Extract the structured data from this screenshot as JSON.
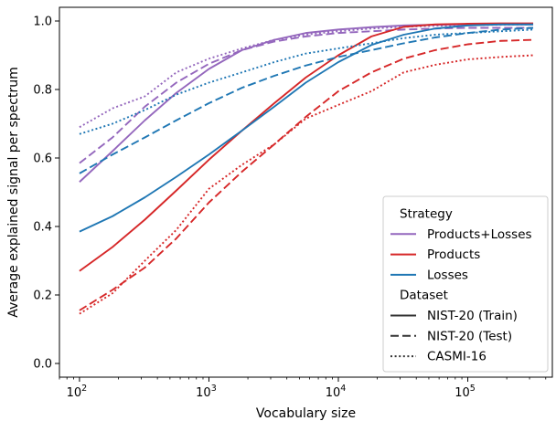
{
  "chart_data": {
    "type": "line",
    "title": "",
    "xlabel": "Vocabulary size",
    "ylabel": "Average explained signal per spectrum",
    "xscale": "log",
    "xlim": [
      70,
      450000
    ],
    "ylim": [
      -0.04,
      1.04
    ],
    "x_ticks": [
      {
        "value": 100,
        "label": "10",
        "exp": "2"
      },
      {
        "value": 1000,
        "label": "10",
        "exp": "3"
      },
      {
        "value": 10000,
        "label": "10",
        "exp": "4"
      },
      {
        "value": 100000,
        "label": "10",
        "exp": "5"
      }
    ],
    "y_ticks": [
      0.0,
      0.2,
      0.4,
      0.6,
      0.8,
      1.0
    ],
    "y_tick_labels": [
      "0.0",
      "0.2",
      "0.4",
      "0.6",
      "0.8",
      "1.0"
    ],
    "grid": false,
    "legend_position": "lower right",
    "legend": {
      "strategy_title": "Strategy",
      "strategy_items": [
        {
          "label": "Products+Losses",
          "color": "#9467bd"
        },
        {
          "label": "Products",
          "color": "#d62728"
        },
        {
          "label": "Losses",
          "color": "#1f77b4"
        }
      ],
      "dataset_title": "Dataset",
      "dataset_items": [
        {
          "label": "NIST-20 (Train)",
          "style": "solid"
        },
        {
          "label": "NIST-20 (Test)",
          "style": "dashed"
        },
        {
          "label": "CASMI-16",
          "style": "dotted"
        }
      ]
    },
    "series": [
      {
        "strategy": "Products+Losses",
        "dataset": "NIST-20 (Train)",
        "color": "#9467bd",
        "style": "solid",
        "x": [
          100,
          180,
          320,
          560,
          1000,
          1800,
          3200,
          5600,
          10000,
          18000,
          32000,
          56000,
          100000,
          180000,
          320000
        ],
        "y": [
          0.53,
          0.62,
          0.71,
          0.79,
          0.86,
          0.915,
          0.945,
          0.965,
          0.975,
          0.982,
          0.987,
          0.989,
          0.99,
          0.99,
          0.99
        ]
      },
      {
        "strategy": "Products+Losses",
        "dataset": "NIST-20 (Test)",
        "color": "#9467bd",
        "style": "dashed",
        "x": [
          100,
          180,
          320,
          560,
          1000,
          1800,
          3200,
          5600,
          10000,
          18000,
          32000,
          56000,
          100000,
          180000,
          320000
        ],
        "y": [
          0.585,
          0.66,
          0.75,
          0.82,
          0.875,
          0.915,
          0.94,
          0.955,
          0.965,
          0.97,
          0.975,
          0.978,
          0.98,
          0.98,
          0.98
        ]
      },
      {
        "strategy": "Products+Losses",
        "dataset": "CASMI-16",
        "color": "#9467bd",
        "style": "dotted",
        "x": [
          100,
          180,
          320,
          560,
          1000,
          1800,
          3200,
          5600,
          10000,
          18000,
          32000,
          56000,
          100000,
          180000,
          320000
        ],
        "y": [
          0.69,
          0.745,
          0.78,
          0.85,
          0.89,
          0.92,
          0.945,
          0.96,
          0.97,
          0.978,
          0.983,
          0.986,
          0.988,
          0.989,
          0.99
        ]
      },
      {
        "strategy": "Products",
        "dataset": "NIST-20 (Train)",
        "color": "#d62728",
        "style": "solid",
        "x": [
          100,
          180,
          320,
          560,
          1000,
          1800,
          3200,
          5600,
          10000,
          18000,
          32000,
          56000,
          100000,
          180000,
          320000
        ],
        "y": [
          0.27,
          0.34,
          0.42,
          0.505,
          0.595,
          0.68,
          0.76,
          0.835,
          0.9,
          0.955,
          0.983,
          0.99,
          0.992,
          0.993,
          0.993
        ]
      },
      {
        "strategy": "Products",
        "dataset": "NIST-20 (Test)",
        "color": "#d62728",
        "style": "dashed",
        "x": [
          100,
          180,
          320,
          560,
          1000,
          1800,
          3200,
          5600,
          10000,
          18000,
          32000,
          56000,
          100000,
          180000,
          320000
        ],
        "y": [
          0.155,
          0.215,
          0.28,
          0.365,
          0.47,
          0.56,
          0.64,
          0.72,
          0.795,
          0.85,
          0.89,
          0.915,
          0.932,
          0.942,
          0.945
        ]
      },
      {
        "strategy": "Products",
        "dataset": "CASMI-16",
        "color": "#d62728",
        "style": "dotted",
        "x": [
          100,
          180,
          320,
          560,
          1000,
          1800,
          3200,
          5600,
          10000,
          18000,
          32000,
          56000,
          100000,
          180000,
          320000
        ],
        "y": [
          0.145,
          0.205,
          0.3,
          0.39,
          0.51,
          0.58,
          0.64,
          0.715,
          0.755,
          0.795,
          0.85,
          0.872,
          0.888,
          0.895,
          0.9
        ]
      },
      {
        "strategy": "Losses",
        "dataset": "NIST-20 (Train)",
        "color": "#1f77b4",
        "style": "solid",
        "x": [
          100,
          180,
          320,
          560,
          1000,
          1800,
          3200,
          5600,
          10000,
          18000,
          32000,
          56000,
          100000,
          180000,
          320000
        ],
        "y": [
          0.385,
          0.43,
          0.485,
          0.545,
          0.61,
          0.68,
          0.75,
          0.82,
          0.88,
          0.93,
          0.96,
          0.978,
          0.987,
          0.99,
          0.99
        ]
      },
      {
        "strategy": "Losses",
        "dataset": "NIST-20 (Test)",
        "color": "#1f77b4",
        "style": "dashed",
        "x": [
          100,
          180,
          320,
          560,
          1000,
          1800,
          3200,
          5600,
          10000,
          18000,
          32000,
          56000,
          100000,
          180000,
          320000
        ],
        "y": [
          0.555,
          0.61,
          0.66,
          0.71,
          0.76,
          0.805,
          0.84,
          0.87,
          0.895,
          0.915,
          0.935,
          0.952,
          0.965,
          0.975,
          0.98
        ]
      },
      {
        "strategy": "Losses",
        "dataset": "CASMI-16",
        "color": "#1f77b4",
        "style": "dotted",
        "x": [
          100,
          180,
          320,
          560,
          1000,
          1800,
          3200,
          5600,
          10000,
          18000,
          32000,
          56000,
          100000,
          180000,
          320000
        ],
        "y": [
          0.67,
          0.7,
          0.74,
          0.785,
          0.82,
          0.85,
          0.88,
          0.905,
          0.92,
          0.935,
          0.95,
          0.96,
          0.965,
          0.97,
          0.975
        ]
      }
    ]
  }
}
